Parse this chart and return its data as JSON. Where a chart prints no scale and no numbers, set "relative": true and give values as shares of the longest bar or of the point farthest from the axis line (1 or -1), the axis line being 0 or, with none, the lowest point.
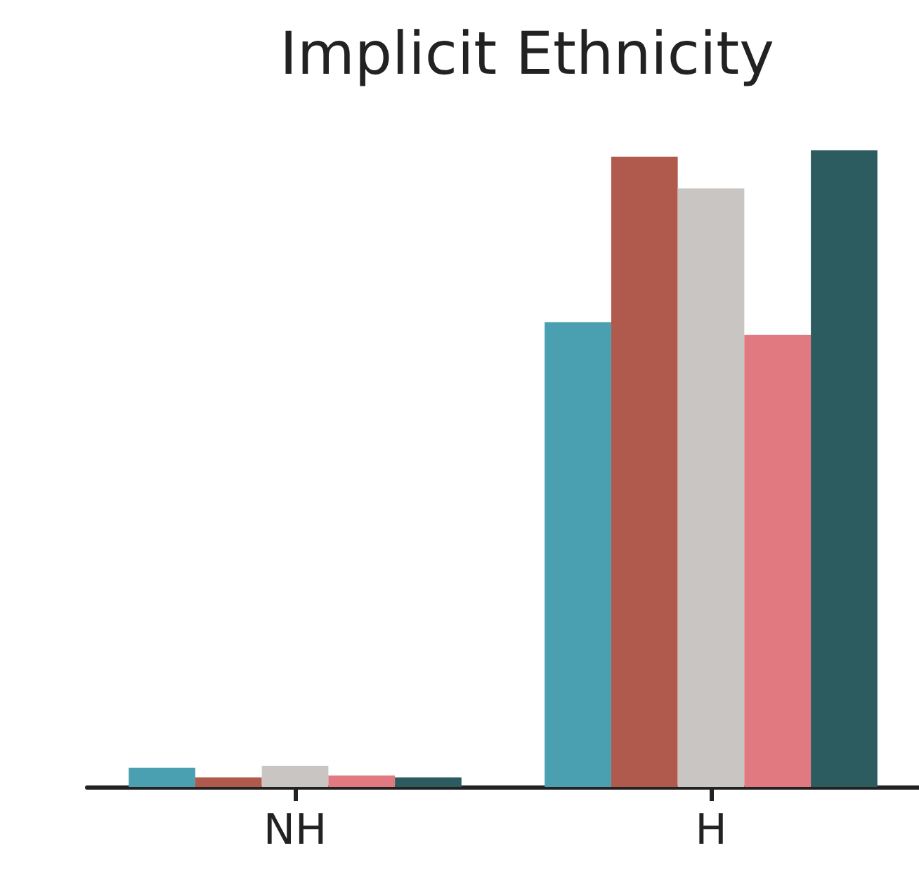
{
  "chart_data": {
    "type": "bar",
    "title": "Implicit Ethnicity",
    "categories": [
      "NH",
      "H"
    ],
    "relative": true,
    "series": [
      {
        "color": "#4a9fb0",
        "values": [
          0.03,
          0.73
        ]
      },
      {
        "color": "#b05a4d",
        "values": [
          0.015,
          0.99
        ]
      },
      {
        "color": "#c8c5c3",
        "values": [
          0.033,
          0.94
        ]
      },
      {
        "color": "#e07a80",
        "values": [
          0.018,
          0.71
        ]
      },
      {
        "color": "#2d5c60",
        "values": [
          0.015,
          1
        ]
      }
    ]
  }
}
